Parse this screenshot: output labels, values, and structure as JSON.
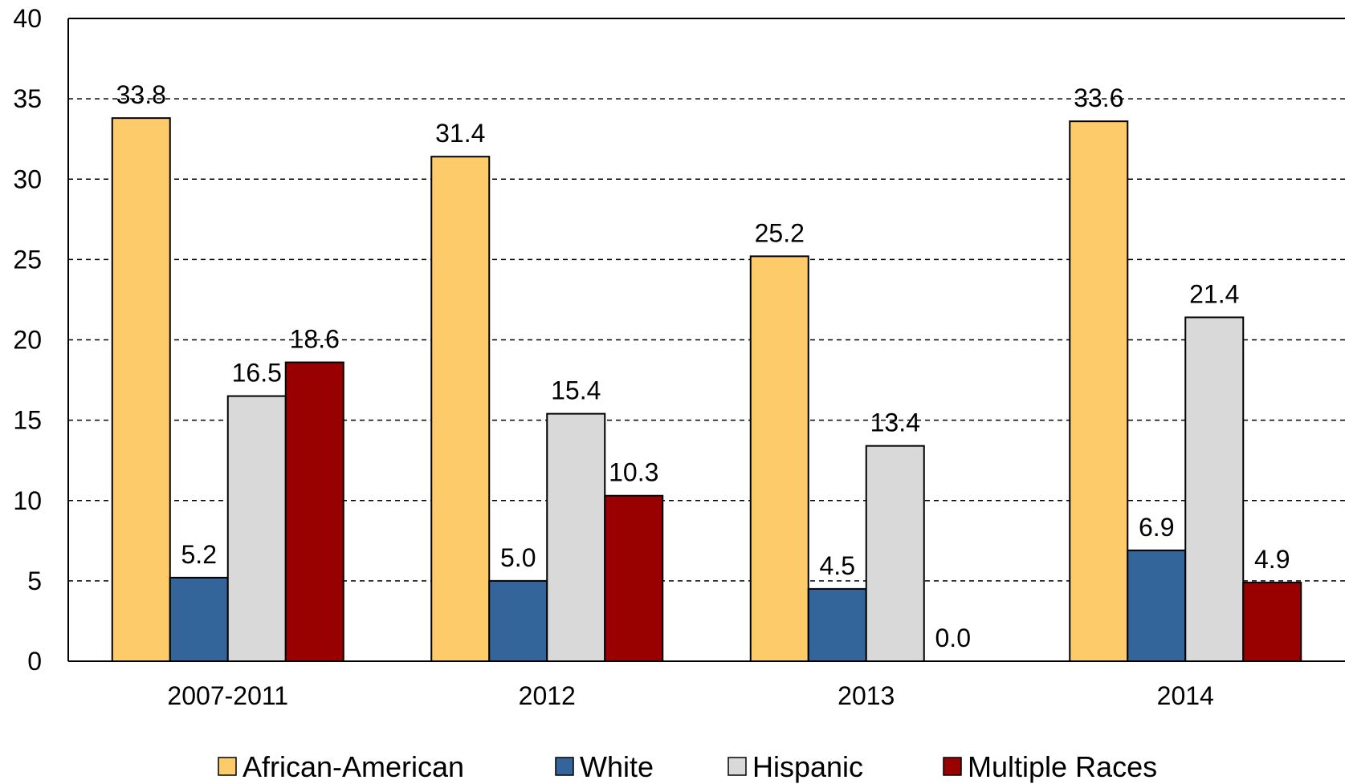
{
  "chart_data": {
    "type": "bar",
    "title": "",
    "xlabel": "",
    "ylabel": "",
    "ylim": [
      0,
      40
    ],
    "yticks": [
      0,
      5,
      10,
      15,
      20,
      25,
      30,
      35,
      40
    ],
    "grid": true,
    "legend_position": "bottom",
    "categories": [
      "2007-2011",
      "2012",
      "2013",
      "2014"
    ],
    "series": [
      {
        "name": "African-American",
        "color": "#fdcb6a",
        "values": [
          33.8,
          31.4,
          25.2,
          33.6
        ],
        "labels": [
          "33.8",
          "31.4",
          "25.2",
          "33.6"
        ]
      },
      {
        "name": "White",
        "color": "#33659a",
        "values": [
          5.2,
          5.0,
          4.5,
          6.9
        ],
        "labels": [
          "5.2",
          "5.0",
          "4.5",
          "6.9"
        ]
      },
      {
        "name": "Hispanic",
        "color": "#d9d9d9",
        "values": [
          16.5,
          15.4,
          13.4,
          21.4
        ],
        "labels": [
          "16.5",
          "15.4",
          "13.4",
          "21.4"
        ]
      },
      {
        "name": "Multiple Races",
        "color": "#990000",
        "values": [
          18.6,
          10.3,
          0.0,
          4.9
        ],
        "labels": [
          "18.6",
          "10.3",
          "0.0",
          "4.9"
        ]
      }
    ]
  }
}
